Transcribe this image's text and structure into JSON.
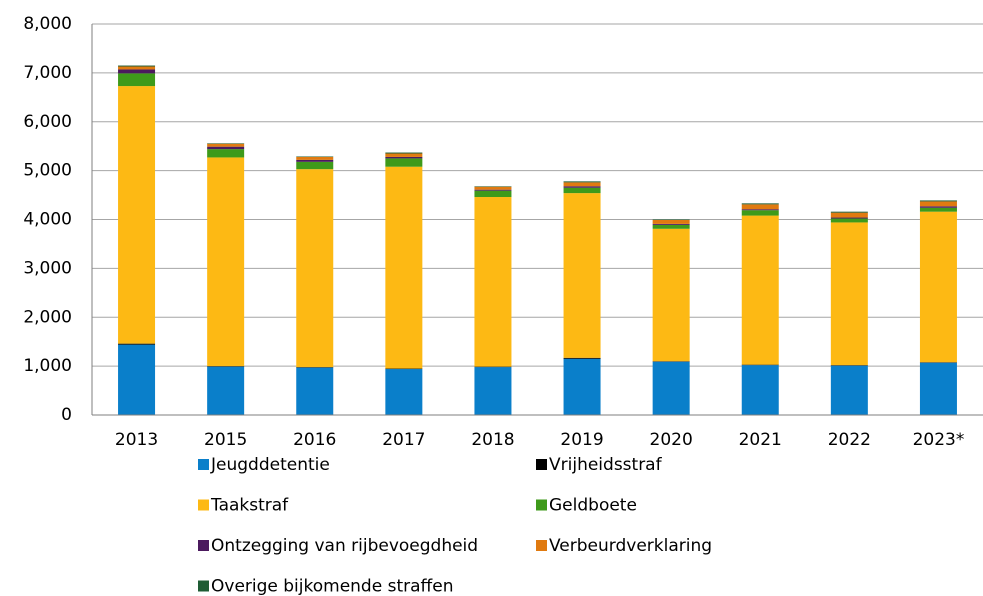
{
  "chart_data": {
    "type": "stacked_bar",
    "categories": [
      "2013",
      "2015",
      "2016",
      "2017",
      "2018",
      "2019",
      "2020",
      "2021",
      "2022",
      "2023*"
    ],
    "series": [
      {
        "name": "Jeugddetentie",
        "color": "#0a7fca",
        "values": [
          1440,
          990,
          970,
          940,
          980,
          1150,
          1090,
          1020,
          1010,
          1070
        ]
      },
      {
        "name": "Vrijheidsstraf",
        "color": "#000000",
        "values": [
          20,
          10,
          10,
          10,
          10,
          20,
          10,
          10,
          10,
          10
        ]
      },
      {
        "name": "Taakstraf",
        "color": "#fdb914",
        "values": [
          5270,
          4270,
          4050,
          4130,
          3470,
          3370,
          2710,
          3050,
          2920,
          3080
        ]
      },
      {
        "name": "Geldboete",
        "color": "#3e9a1a",
        "values": [
          260,
          170,
          150,
          170,
          130,
          110,
          80,
          110,
          80,
          80
        ]
      },
      {
        "name": "Ontzegging van rijbevoegdheid",
        "color": "#4b1a5e",
        "values": [
          80,
          50,
          40,
          30,
          20,
          30,
          20,
          20,
          20,
          30
        ]
      },
      {
        "name": "Verbeurdverklaring",
        "color": "#e07a10",
        "values": [
          60,
          60,
          60,
          70,
          60,
          80,
          80,
          100,
          100,
          100
        ]
      },
      {
        "name": "Overige bijkomende straffen",
        "color": "#1e5c34",
        "values": [
          20,
          10,
          10,
          20,
          10,
          20,
          10,
          20,
          20,
          20
        ]
      }
    ],
    "ylim": [
      0,
      8000
    ],
    "yticks": [
      0,
      {
        "value": 1000,
        "label": "1,000"
      },
      {
        "value": 2000,
        "label": "2,000"
      },
      {
        "value": 3000,
        "label": "3,000"
      },
      {
        "value": 4000,
        "label": "4,000"
      },
      {
        "value": 5000,
        "label": "5,000"
      },
      {
        "value": 6000,
        "label": "6,000"
      },
      {
        "value": 7000,
        "label": "7,000"
      },
      {
        "value": 8000,
        "label": "8,000"
      }
    ],
    "grid": true
  }
}
